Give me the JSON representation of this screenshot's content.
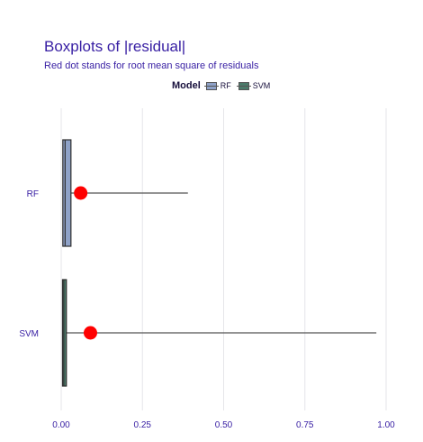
{
  "title": "Boxplots of |residual|",
  "subtitle": "Red dot stands for root mean square of residuals",
  "legend": {
    "title": "Model",
    "items": [
      {
        "label": "RF",
        "color": "#8ea1c7"
      },
      {
        "label": "SVM",
        "color": "#4b7a6a"
      }
    ]
  },
  "chart_data": {
    "type": "boxplot",
    "orientation": "horizontal",
    "title": "Boxplots of |residual|",
    "subtitle": "Red dot stands for root mean square of residuals",
    "xlim": [
      0,
      1
    ],
    "x_ticks": [
      "0.00",
      "0.25",
      "0.50",
      "0.75",
      "1.00"
    ],
    "x_tick_values": [
      0,
      0.25,
      0.5,
      0.75,
      1.0
    ],
    "grid": true,
    "legend_position": "top",
    "categories": [
      "RF",
      "SVM"
    ],
    "series": [
      {
        "name": "RF",
        "color": "#8ea1c7",
        "min": 0.0,
        "q1": 0.005,
        "median": 0.012,
        "q3": 0.03,
        "max": 0.39,
        "rmse": 0.06
      },
      {
        "name": "SVM",
        "color": "#4b7a6a",
        "min": 0.0,
        "q1": 0.004,
        "median": 0.008,
        "q3": 0.016,
        "max": 0.97,
        "rmse": 0.09
      }
    ],
    "dot_color": "#ff0000"
  }
}
